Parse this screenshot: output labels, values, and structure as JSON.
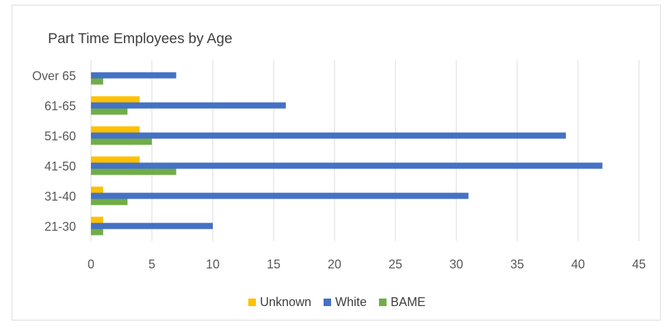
{
  "chart_data": {
    "type": "bar",
    "orientation": "horizontal",
    "title": "Part Time Employees by Age",
    "categories": [
      "21-30",
      "31-40",
      "41-50",
      "51-60",
      "61-65",
      "Over 65"
    ],
    "series": [
      {
        "name": "Unknown",
        "color": "#FFC000",
        "values": [
          1,
          1,
          4,
          4,
          4,
          0
        ]
      },
      {
        "name": "White",
        "color": "#4472C4",
        "values": [
          10,
          31,
          42,
          39,
          16,
          7
        ]
      },
      {
        "name": "BAME",
        "color": "#70AD47",
        "values": [
          1,
          3,
          7,
          5,
          3,
          1
        ]
      }
    ],
    "xlim": [
      0,
      45
    ],
    "xticks": [
      "0",
      "5",
      "10",
      "15",
      "20",
      "25",
      "30",
      "35",
      "40",
      "45"
    ],
    "grid": true,
    "legend_position": "bottom"
  }
}
